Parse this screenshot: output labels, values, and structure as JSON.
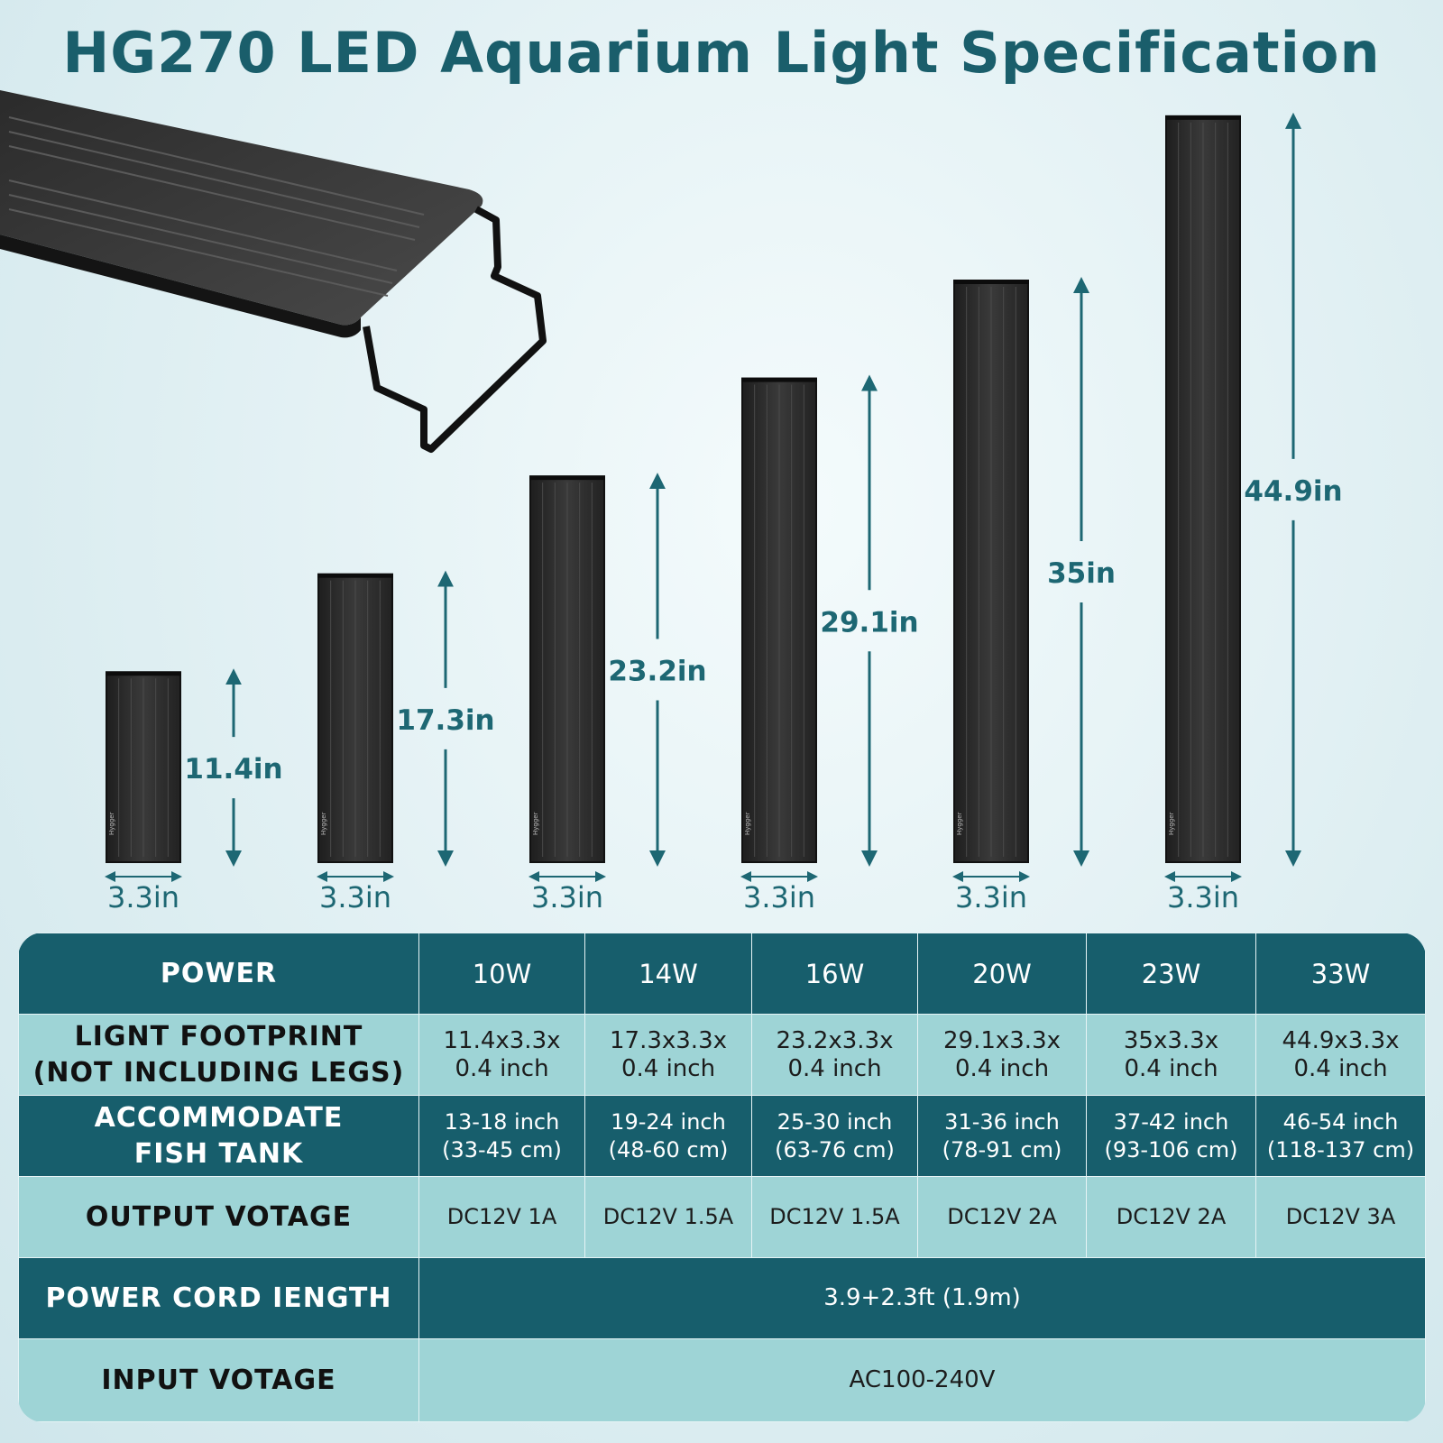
{
  "title": "HG270 LED Aquarium Light Specification",
  "colors": {
    "accent": "#1a5e6b",
    "dark_row": "#175e6c",
    "light_row": "#9ed4d6",
    "light_bar": "#2a2a2a"
  },
  "lights": [
    {
      "length": "11.4in",
      "length_value": 11.4,
      "width": "3.3in",
      "brand": "Hygger"
    },
    {
      "length": "17.3in",
      "length_value": 17.3,
      "width": "3.3in",
      "brand": "Hygger"
    },
    {
      "length": "23.2in",
      "length_value": 23.2,
      "width": "3.3in",
      "brand": "Hygger"
    },
    {
      "length": "29.1in",
      "length_value": 29.1,
      "width": "3.3in",
      "brand": "Hygger"
    },
    {
      "length": "35in",
      "length_value": 35,
      "width": "3.3in",
      "brand": "Hygger"
    },
    {
      "length": "44.9in",
      "length_value": 44.9,
      "width": "3.3in",
      "brand": "Hygger"
    }
  ],
  "table": {
    "power": {
      "label": "POWER",
      "values": [
        "10W",
        "14W",
        "16W",
        "20W",
        "23W",
        "33W"
      ]
    },
    "footprint": {
      "label_line1": "LIGNT FOOTPRINT",
      "label_line2": "(NOT INCLUDING LEGS)",
      "values": [
        {
          "line1": "11.4x3.3x",
          "line2": "0.4 inch"
        },
        {
          "line1": "17.3x3.3x",
          "line2": "0.4 inch"
        },
        {
          "line1": "23.2x3.3x",
          "line2": "0.4 inch"
        },
        {
          "line1": "29.1x3.3x",
          "line2": "0.4 inch"
        },
        {
          "line1": "35x3.3x",
          "line2": "0.4 inch"
        },
        {
          "line1": "44.9x3.3x",
          "line2": "0.4 inch"
        }
      ]
    },
    "tank": {
      "label_line1": "ACCOMMODATE",
      "label_line2": "FISH TANK",
      "values": [
        {
          "line1": "13-18 inch",
          "line2": "(33-45 cm)"
        },
        {
          "line1": "19-24 inch",
          "line2": "(48-60 cm)"
        },
        {
          "line1": "25-30 inch",
          "line2": "(63-76 cm)"
        },
        {
          "line1": "31-36 inch",
          "line2": "(78-91 cm)"
        },
        {
          "line1": "37-42 inch",
          "line2": "(93-106 cm)"
        },
        {
          "line1": "46-54 inch",
          "line2": "(118-137 cm)"
        }
      ]
    },
    "output": {
      "label": "OUTPUT VOTAGE",
      "values": [
        "DC12V 1A",
        "DC12V 1.5A",
        "DC12V 1.5A",
        "DC12V 2A",
        "DC12V 2A",
        "DC12V 3A"
      ]
    },
    "cord": {
      "label": "POWER CORD IENGTH",
      "value": "3.9+2.3ft (1.9m)"
    },
    "input": {
      "label": "INPUT VOTAGE",
      "value": "AC100-240V"
    }
  }
}
